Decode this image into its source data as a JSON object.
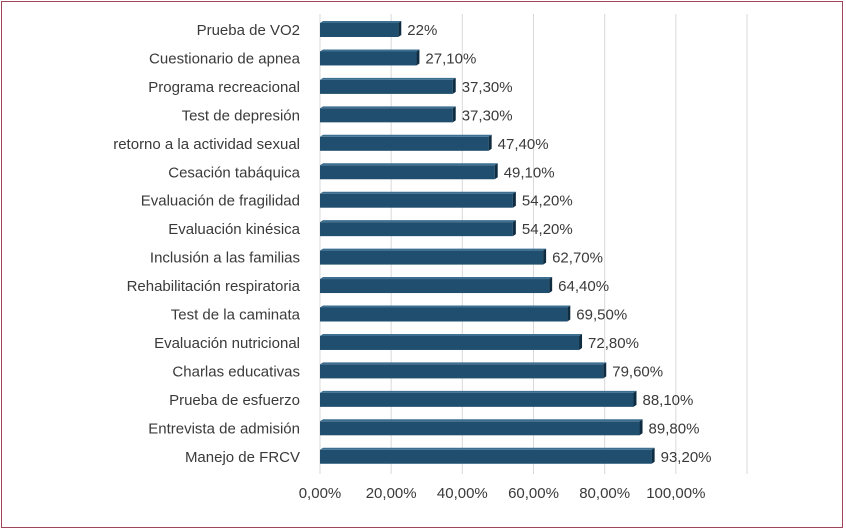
{
  "chart_data": {
    "type": "bar",
    "orientation": "horizontal",
    "categories": [
      "Prueba de VO2",
      "Cuestionario de apnea",
      "Programa recreacional",
      "Test de depresión",
      "retorno a la actividad sexual",
      "Cesación tabáquica",
      "Evaluación de fragilidad",
      "Evaluación kinésica",
      "Inclusión a las familias",
      "Rehabilitación respiratoria",
      "Test de la caminata",
      "Evaluación nutricional",
      "Charlas educativas",
      "Prueba de esfuerzo",
      "Entrevista de admisión",
      "Manejo de FRCV"
    ],
    "values": [
      22,
      27.1,
      37.3,
      37.3,
      47.4,
      49.1,
      54.2,
      54.2,
      62.7,
      64.4,
      69.5,
      72.8,
      79.6,
      88.1,
      89.8,
      93.2
    ],
    "value_labels": [
      "22%",
      "27,10%",
      "37,30%",
      "37,30%",
      "47,40%",
      "49,10%",
      "54,20%",
      "54,20%",
      "62,70%",
      "64,40%",
      "69,50%",
      "72,80%",
      "79,60%",
      "88,10%",
      "89,80%",
      "93,20%"
    ],
    "x_ticks": [
      "0,00%",
      "20,00%",
      "40,00%",
      "60,00%",
      "80,00%",
      "100,00%"
    ],
    "xlim": [
      0,
      120
    ],
    "grid": true,
    "legend": "none",
    "bar_color": "#1f4e6e"
  }
}
